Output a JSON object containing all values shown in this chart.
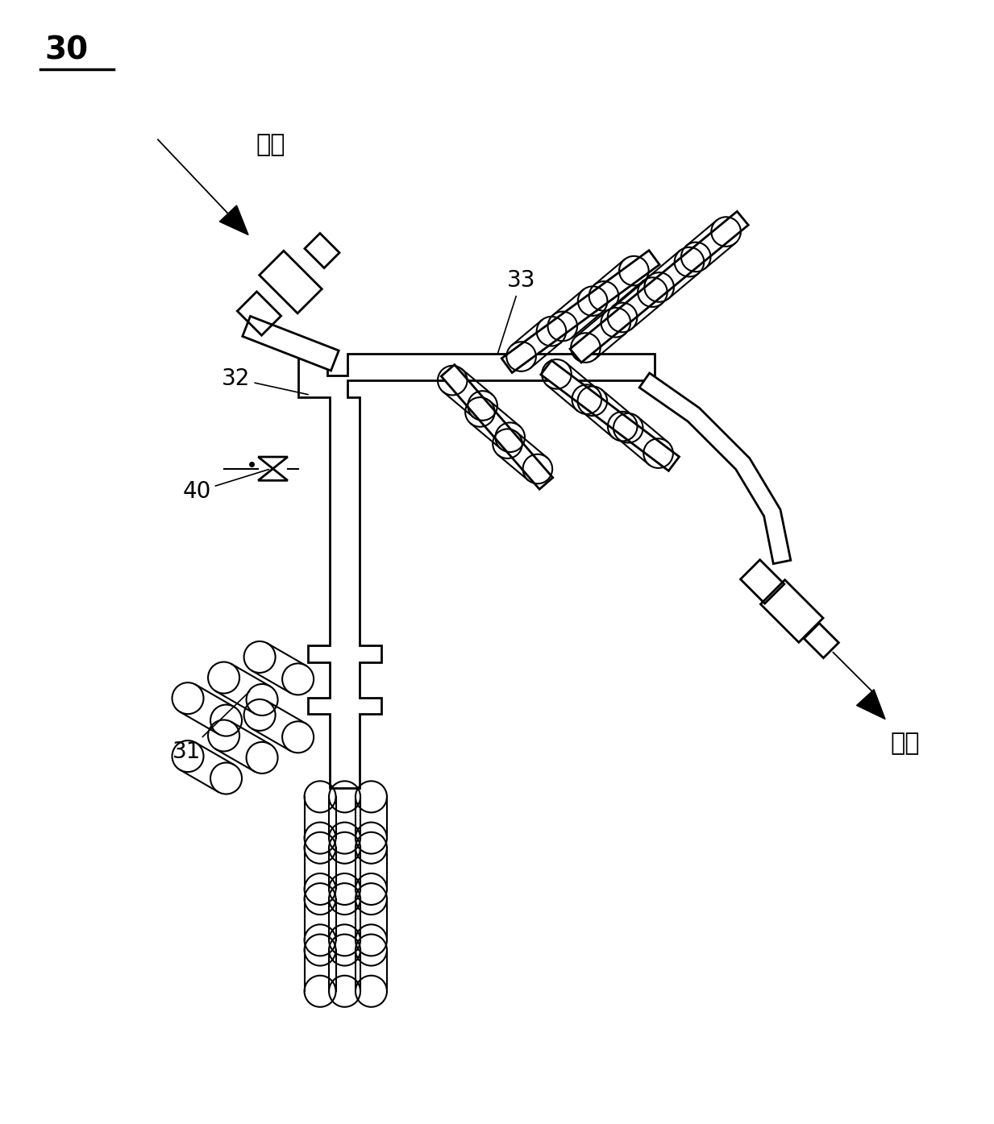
{
  "title": "30",
  "label_zongjin": "总进",
  "label_zongchu": "总出",
  "label_32": "32",
  "label_33": "33",
  "label_40": "40",
  "label_31": "31",
  "bg_color": "#ffffff",
  "line_color": "#000000",
  "line_width": 2.0,
  "fig_width": 12.33,
  "fig_height": 13.95
}
